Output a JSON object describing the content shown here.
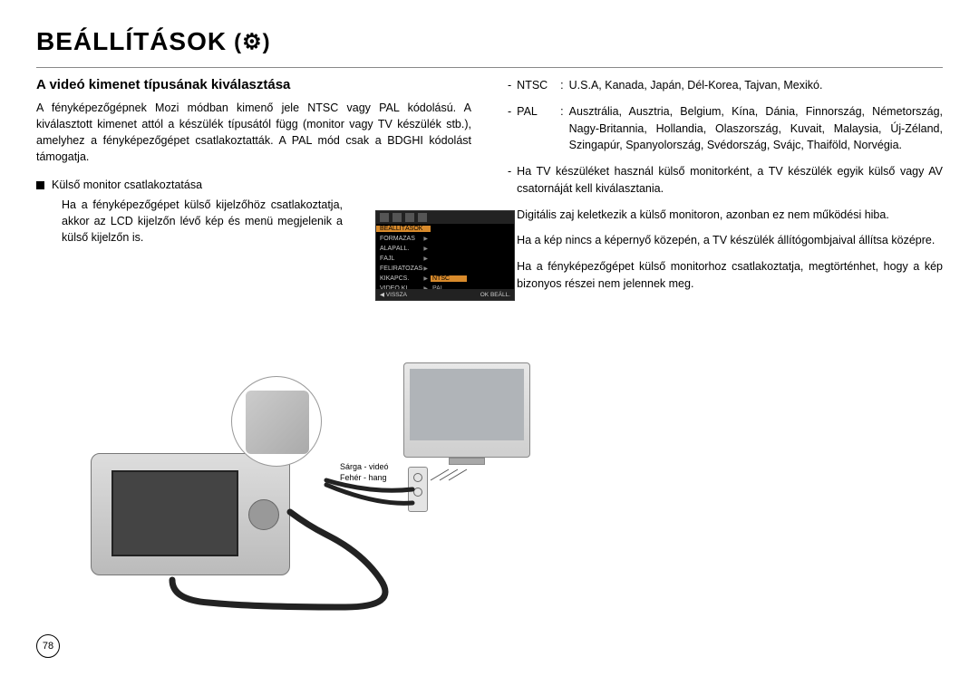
{
  "page": {
    "title": "BEÁLLÍTÁSOK",
    "title_icon": "(⚙)",
    "number": "78"
  },
  "left": {
    "heading": "A videó kimenet típusának kiválasztása",
    "intro": "A fényképezőgépnek Mozi módban kimenő jele NTSC vagy PAL kódolású. A kiválasztott kimenet attól a készülék típusától függ (monitor vagy TV készülék stb.), amelyhez a fényképezőgépet csatlakoztatták. A PAL mód csak a BDGHI kódolást támogatja.",
    "bullet_label": "Külső monitor csatlakoztatása",
    "bullet_body": "Ha a fényképezőgépet külső kijelzőhöz csatlakoztatja, akkor az LCD kijelzőn lévő kép és menü megjelenik a külső kijelzőn is.",
    "cable_yellow": "Sárga - videó",
    "cable_white": "Fehér - hang"
  },
  "lcd": {
    "header": "BEÁLLÍTÁSOK",
    "rows": [
      {
        "label": "FORMÁZÁS",
        "val": ""
      },
      {
        "label": "ALAPÁLL.",
        "val": ""
      },
      {
        "label": "FÁJL",
        "val": ""
      },
      {
        "label": "FELIRATOZÁS",
        "val": ""
      },
      {
        "label": "KIKAPCS.",
        "val": "NTSC"
      },
      {
        "label": "VIDEÓ KI",
        "val": "PAL"
      }
    ],
    "highlight_row_index": 4,
    "footer_left": "◀  VISSZA",
    "footer_right": "OK  BEÁLL."
  },
  "right": {
    "standards": [
      {
        "code": "NTSC",
        "colon": ":",
        "text": "U.S.A, Kanada, Japán, Dél-Korea, Tajvan, Mexikó."
      },
      {
        "code": "PAL",
        "colon": ":",
        "text": "Ausztrália, Ausztria, Belgium, Kína, Dánia, Finnország, Németország, Nagy-Britannia, Hollandia, Olaszország, Kuvait, Malaysia, Új-Zéland, Szingapúr, Spanyolország, Svédország, Svájc, Thaiföld, Norvégia."
      }
    ],
    "notes": [
      "Ha TV készüléket használ külső monitorként, a TV készülék egyik külső vagy AV csatornáját kell kiválasztania.",
      "Digitális zaj keletkezik a külső monitoron, azonban ez nem működési hiba.",
      "Ha a kép nincs a képernyő közepén, a TV készülék állítógombjaival állítsa középre.",
      "Ha a fényképezőgépet külső monitorhoz csatlakoztatja, megtörténhet, hogy a kép bizonyos részei nem jelennek meg."
    ]
  },
  "colors": {
    "highlight": "#d88a2b",
    "lcd_bg": "#000000",
    "text": "#000000"
  }
}
